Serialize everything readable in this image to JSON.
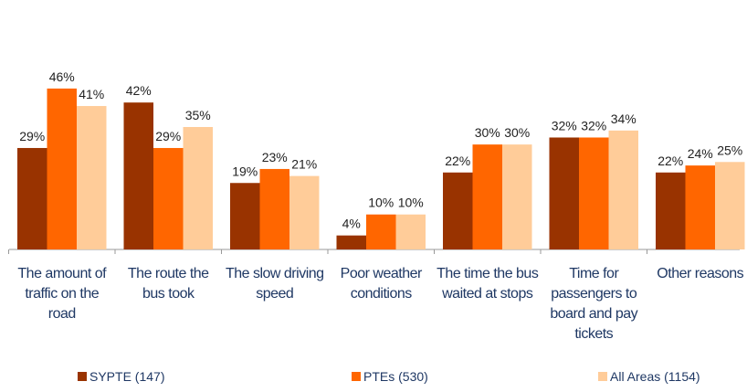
{
  "chart_data": {
    "type": "bar",
    "categories": [
      "The amount of traffic on the road",
      "The route the bus took",
      "The slow driving speed",
      "Poor weather conditions",
      "The time the bus waited at stops",
      "Time for passengers to board and pay tickets",
      "Other reasons"
    ],
    "series": [
      {
        "name": "SYPTE (147)",
        "color": "#993300",
        "values": [
          29,
          42,
          19,
          4,
          22,
          32,
          22
        ],
        "value_labels": [
          "29%",
          "42%",
          "19%",
          "4%",
          "22%",
          "32%",
          "22%"
        ]
      },
      {
        "name": "PTEs (530)",
        "color": "#ff6600",
        "values": [
          46,
          29,
          23,
          10,
          30,
          32,
          24
        ],
        "value_labels": [
          "46%",
          "29%",
          "23%",
          "10%",
          "30%",
          "32%",
          "24%"
        ]
      },
      {
        "name": "All Areas (1154)",
        "color": "#ffcc99",
        "values": [
          41,
          35,
          21,
          10,
          30,
          34,
          25
        ],
        "value_labels": [
          "41%",
          "35%",
          "21%",
          "10%",
          "30%",
          "34%",
          "25%"
        ]
      }
    ],
    "ylim": [
      0,
      70
    ]
  }
}
